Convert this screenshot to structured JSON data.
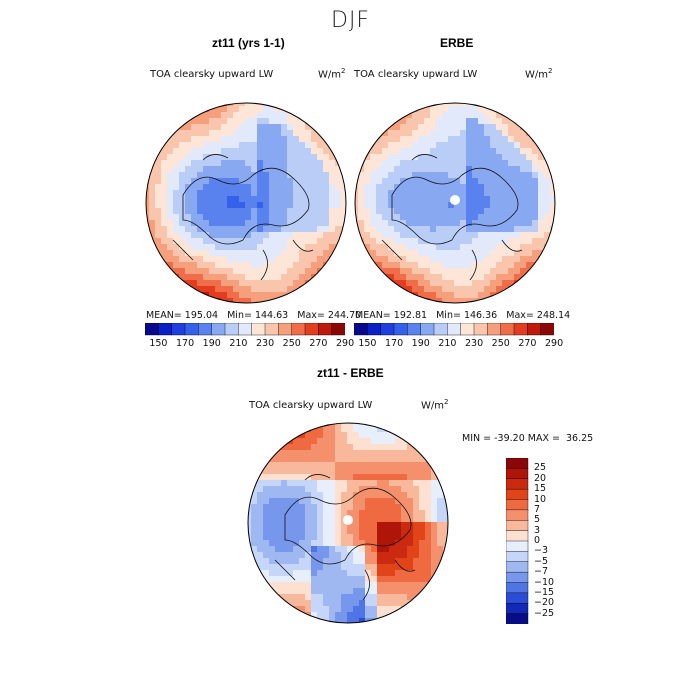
{
  "figure": {
    "title": "DJF",
    "colors": {
      "c150": "#08088c",
      "c160": "#0a1fc4",
      "c170": "#1e3ee0",
      "c180": "#3560ea",
      "c190": "#5a82ee",
      "c200": "#88a8f2",
      "c210": "#b9cdf7",
      "c220": "#e1e9fb",
      "c230": "#fde6d8",
      "c240": "#f9c6ad",
      "c250": "#f59f7d",
      "c260": "#ef6d48",
      "c270": "#e23d1f",
      "c280": "#be1a0c",
      "c290": "#8a0707"
    }
  },
  "panels": [
    {
      "title": "zt11 (yrs 1-1)",
      "variable": "TOA clearsky upward LW",
      "units": "W/m",
      "units_sup": "2",
      "stats": {
        "mean_label": "MEAN=",
        "mean": "195.04",
        "min_label": "Min=",
        "min": "144.63",
        "max_label": "Max=",
        "max": "244.70"
      }
    },
    {
      "title": "ERBE",
      "variable": "TOA clearsky upward LW",
      "units": "W/m",
      "units_sup": "2",
      "stats": {
        "mean_label": "MEAN=",
        "mean": "192.81",
        "min_label": "Min=",
        "min": "146.36",
        "max_label": "Max=",
        "max": "248.14"
      }
    }
  ],
  "colorbar_top": {
    "tick_labels": [
      "150",
      "170",
      "190",
      "210",
      "230",
      "250",
      "270",
      "290"
    ]
  },
  "diff_panel": {
    "title": "zt11 - ERBE",
    "variable": "TOA clearsky upward LW",
    "units": "W/m",
    "units_sup": "2",
    "min_label": "MIN =",
    "min": "-39.20",
    "max_label": "MAX =",
    "max": "36.25",
    "colorbar": {
      "tick_labels": [
        "25",
        "20",
        "15",
        "10",
        "7",
        "5",
        "3",
        "0",
        "−3",
        "−5",
        "−7",
        "−10",
        "−15",
        "−20",
        "−25"
      ],
      "colors": [
        "#8a0707",
        "#b0150a",
        "#cc2a10",
        "#e04418",
        "#ef6a40",
        "#f4906c",
        "#f8b89c",
        "#fde0d0",
        "#e7eefc",
        "#c6d6f8",
        "#9fb8f2",
        "#7697ec",
        "#4f74e3",
        "#2c4bd6",
        "#1228b6",
        "#080d86"
      ]
    }
  }
}
